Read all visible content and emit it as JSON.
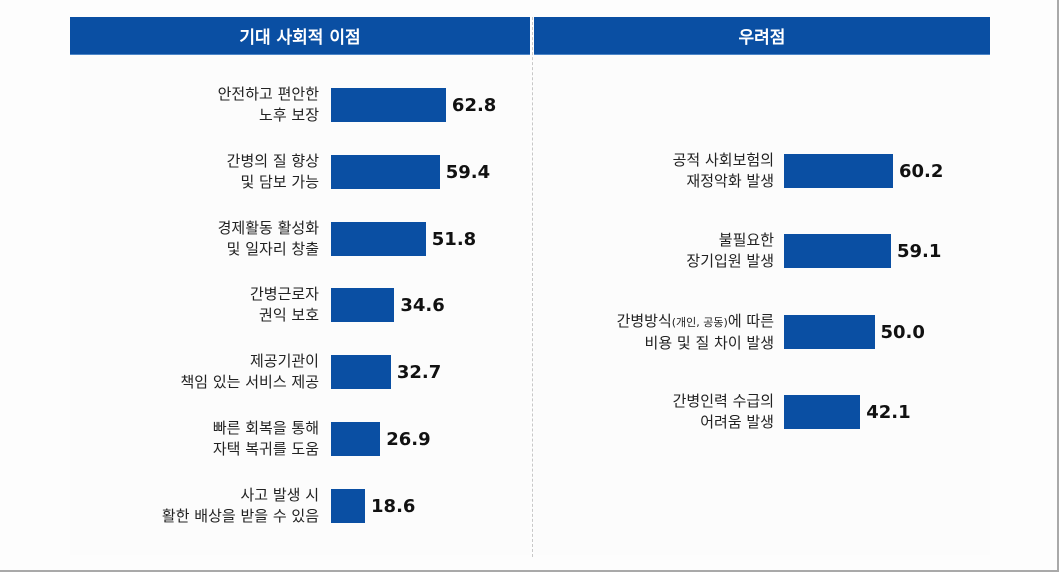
{
  "chart_data": [
    {
      "type": "bar",
      "orientation": "horizontal",
      "title": "기대 사회적 이점",
      "categories": [
        [
          "안전하고 편안한",
          "노후 보장"
        ],
        [
          "간병의 질 향상",
          "및 담보 가능"
        ],
        [
          "경제활동 활성화",
          "및 일자리 창출"
        ],
        [
          "간병근로자",
          "권익 보호"
        ],
        [
          "제공기관이",
          "책임 있는 서비스 제공"
        ],
        [
          "빠른 회복을 통해",
          "자택 복귀를 도움"
        ],
        [
          "사고 발생 시",
          "활한 배상을 받을 수 있음"
        ]
      ],
      "values": [
        62.8,
        59.4,
        51.8,
        34.6,
        32.7,
        26.9,
        18.6
      ],
      "value_labels": [
        "62.8",
        "59.4",
        "51.8",
        "34.6",
        "32.7",
        "26.9",
        "18.6"
      ],
      "xlim": [
        0,
        100
      ],
      "grid": false,
      "color": "#0a4fa3"
    },
    {
      "type": "bar",
      "orientation": "horizontal",
      "title": "우려점",
      "categories": [
        [
          "공적 사회보험의",
          "재정악화 발생"
        ],
        [
          "불필요한",
          "장기입원 발생"
        ],
        [
          "간병방식(개인, 공동)에 따른",
          "비용 및 질 차이 발생"
        ],
        [
          "간병인력 수급의",
          "어려움 발생"
        ]
      ],
      "values": [
        60.2,
        59.1,
        50.0,
        42.1
      ],
      "value_labels": [
        "60.2",
        "59.1",
        "50.0",
        "42.1"
      ],
      "xlim": [
        0,
        100
      ],
      "grid": false,
      "color": "#0a4fa3"
    }
  ]
}
